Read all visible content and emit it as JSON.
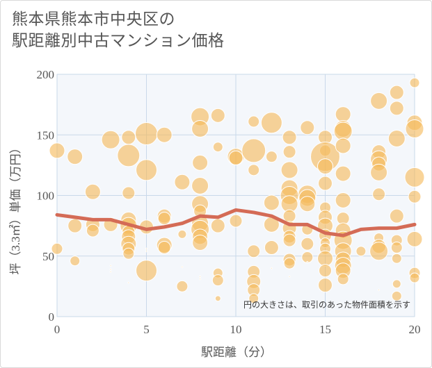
{
  "title_line1": "熊本県熊本市中央区の",
  "title_line2": "駅距離別中古マンション価格",
  "chart_data": {
    "type": "scatter",
    "xlabel": "駅距離（分）",
    "ylabel": "坪（3.3㎡）単価（万円）",
    "xlim": [
      0,
      20
    ],
    "ylim": [
      0,
      200
    ],
    "x_ticks": [
      "0",
      "5",
      "10",
      "15",
      "20"
    ],
    "y_ticks": [
      "0",
      "50",
      "100",
      "150",
      "200"
    ],
    "grid": true,
    "annotation": "円の大きさは、取引のあった物件面積を示す",
    "bubble_color": "#f5b95b",
    "line_color": "#d46b56",
    "bubbles": [
      {
        "x": 0,
        "y": 137,
        "r": 11
      },
      {
        "x": 0,
        "y": 56,
        "r": 8
      },
      {
        "x": 1,
        "y": 132,
        "r": 11
      },
      {
        "x": 1,
        "y": 75,
        "r": 10
      },
      {
        "x": 1,
        "y": 46,
        "r": 7
      },
      {
        "x": 2,
        "y": 103,
        "r": 11
      },
      {
        "x": 2,
        "y": 76,
        "r": 10
      },
      {
        "x": 2,
        "y": 71,
        "r": 9
      },
      {
        "x": 3,
        "y": 146,
        "r": 13
      },
      {
        "x": 3,
        "y": 76,
        "r": 10
      },
      {
        "x": 3,
        "y": 42,
        "r": 1
      },
      {
        "x": 3,
        "y": 39,
        "r": 1
      },
      {
        "x": 3,
        "y": 37,
        "r": 1
      },
      {
        "x": 4,
        "y": 148,
        "r": 10
      },
      {
        "x": 4,
        "y": 133,
        "r": 16
      },
      {
        "x": 4,
        "y": 102,
        "r": 9
      },
      {
        "x": 4,
        "y": 80,
        "r": 11
      },
      {
        "x": 4,
        "y": 75,
        "r": 12
      },
      {
        "x": 4,
        "y": 70,
        "r": 9
      },
      {
        "x": 4,
        "y": 66,
        "r": 10
      },
      {
        "x": 4,
        "y": 60,
        "r": 11
      },
      {
        "x": 4,
        "y": 56,
        "r": 9
      },
      {
        "x": 4,
        "y": 52,
        "r": 8
      },
      {
        "x": 4,
        "y": 28,
        "r": 1
      },
      {
        "x": 5,
        "y": 151,
        "r": 16
      },
      {
        "x": 5,
        "y": 121,
        "r": 15
      },
      {
        "x": 5,
        "y": 74,
        "r": 10
      },
      {
        "x": 5,
        "y": 56,
        "r": 1
      },
      {
        "x": 5,
        "y": 54,
        "r": 1
      },
      {
        "x": 5,
        "y": 38,
        "r": 15
      },
      {
        "x": 6,
        "y": 150,
        "r": 11
      },
      {
        "x": 6,
        "y": 83,
        "r": 10
      },
      {
        "x": 6,
        "y": 81,
        "r": 9
      },
      {
        "x": 6,
        "y": 59,
        "r": 11
      },
      {
        "x": 6,
        "y": 57,
        "r": 9
      },
      {
        "x": 7,
        "y": 111,
        "r": 11
      },
      {
        "x": 7,
        "y": 68,
        "r": 6
      },
      {
        "x": 7,
        "y": 41,
        "r": 1
      },
      {
        "x": 7,
        "y": 25,
        "r": 8
      },
      {
        "x": 8,
        "y": 165,
        "r": 13
      },
      {
        "x": 8,
        "y": 155,
        "r": 12
      },
      {
        "x": 8,
        "y": 127,
        "r": 11
      },
      {
        "x": 8,
        "y": 108,
        "r": 12
      },
      {
        "x": 8,
        "y": 93,
        "r": 12
      },
      {
        "x": 8,
        "y": 87,
        "r": 9
      },
      {
        "x": 8,
        "y": 77,
        "r": 12
      },
      {
        "x": 8,
        "y": 72,
        "r": 13
      },
      {
        "x": 8,
        "y": 66,
        "r": 11
      },
      {
        "x": 8,
        "y": 61,
        "r": 11
      },
      {
        "x": 8,
        "y": 33,
        "r": 1
      },
      {
        "x": 8,
        "y": 31,
        "r": 1
      },
      {
        "x": 9,
        "y": 166,
        "r": 10
      },
      {
        "x": 9,
        "y": 140,
        "r": 7
      },
      {
        "x": 9,
        "y": 75,
        "r": 10
      },
      {
        "x": 9,
        "y": 36,
        "r": 7
      },
      {
        "x": 9,
        "y": 30,
        "r": 8
      },
      {
        "x": 9,
        "y": 15,
        "r": 4
      },
      {
        "x": 10,
        "y": 132,
        "r": 12
      },
      {
        "x": 10,
        "y": 131,
        "r": 10
      },
      {
        "x": 10,
        "y": 79,
        "r": 9
      },
      {
        "x": 11,
        "y": 161,
        "r": 8
      },
      {
        "x": 11,
        "y": 137,
        "r": 17
      },
      {
        "x": 11,
        "y": 121,
        "r": 8
      },
      {
        "x": 11,
        "y": 54,
        "r": 9
      },
      {
        "x": 11,
        "y": 37,
        "r": 9
      },
      {
        "x": 11,
        "y": 29,
        "r": 10
      },
      {
        "x": 11,
        "y": 22,
        "r": 9
      },
      {
        "x": 11,
        "y": 15,
        "r": 7
      },
      {
        "x": 12,
        "y": 160,
        "r": 15
      },
      {
        "x": 12,
        "y": 132,
        "r": 8
      },
      {
        "x": 12,
        "y": 94,
        "r": 11
      },
      {
        "x": 12,
        "y": 76,
        "r": 11
      },
      {
        "x": 12,
        "y": 57,
        "r": 10
      },
      {
        "x": 12,
        "y": 40,
        "r": 1
      },
      {
        "x": 13,
        "y": 148,
        "r": 10
      },
      {
        "x": 13,
        "y": 136,
        "r": 9
      },
      {
        "x": 13,
        "y": 121,
        "r": 12
      },
      {
        "x": 13,
        "y": 106,
        "r": 12
      },
      {
        "x": 13,
        "y": 100,
        "r": 13
      },
      {
        "x": 13,
        "y": 93,
        "r": 12
      },
      {
        "x": 13,
        "y": 83,
        "r": 9
      },
      {
        "x": 13,
        "y": 73,
        "r": 10
      },
      {
        "x": 13,
        "y": 66,
        "r": 9
      },
      {
        "x": 13,
        "y": 63,
        "r": 9
      },
      {
        "x": 13,
        "y": 47,
        "r": 9
      },
      {
        "x": 13,
        "y": 44,
        "r": 8
      },
      {
        "x": 13,
        "y": 33,
        "r": 1
      },
      {
        "x": 14,
        "y": 156,
        "r": 10
      },
      {
        "x": 14,
        "y": 101,
        "r": 13
      },
      {
        "x": 14,
        "y": 98,
        "r": 12
      },
      {
        "x": 14,
        "y": 93,
        "r": 11
      },
      {
        "x": 14,
        "y": 72,
        "r": 8
      },
      {
        "x": 14,
        "y": 60,
        "r": 9
      },
      {
        "x": 14,
        "y": 49,
        "r": 8
      },
      {
        "x": 14,
        "y": 45,
        "r": 1
      },
      {
        "x": 15,
        "y": 148,
        "r": 10
      },
      {
        "x": 15,
        "y": 137,
        "r": 8
      },
      {
        "x": 15,
        "y": 132,
        "r": 21
      },
      {
        "x": 15,
        "y": 124,
        "r": 11
      },
      {
        "x": 15,
        "y": 110,
        "r": 10
      },
      {
        "x": 15,
        "y": 90,
        "r": 8
      },
      {
        "x": 15,
        "y": 82,
        "r": 10
      },
      {
        "x": 15,
        "y": 75,
        "r": 11
      },
      {
        "x": 15,
        "y": 67,
        "r": 9
      },
      {
        "x": 15,
        "y": 61,
        "r": 7
      },
      {
        "x": 15,
        "y": 56,
        "r": 8
      },
      {
        "x": 15,
        "y": 48,
        "r": 11
      },
      {
        "x": 15,
        "y": 38,
        "r": 9
      },
      {
        "x": 15,
        "y": 26,
        "r": 10
      },
      {
        "x": 16,
        "y": 167,
        "r": 11
      },
      {
        "x": 16,
        "y": 155,
        "r": 12
      },
      {
        "x": 16,
        "y": 153,
        "r": 13
      },
      {
        "x": 16,
        "y": 141,
        "r": 11
      },
      {
        "x": 16,
        "y": 118,
        "r": 11
      },
      {
        "x": 16,
        "y": 96,
        "r": 11
      },
      {
        "x": 16,
        "y": 81,
        "r": 9
      },
      {
        "x": 16,
        "y": 71,
        "r": 11
      },
      {
        "x": 16,
        "y": 63,
        "r": 13
      },
      {
        "x": 16,
        "y": 54,
        "r": 12
      },
      {
        "x": 16,
        "y": 47,
        "r": 11
      },
      {
        "x": 16,
        "y": 42,
        "r": 12
      },
      {
        "x": 16,
        "y": 38,
        "r": 11
      },
      {
        "x": 16,
        "y": 31,
        "r": 8
      },
      {
        "x": 17,
        "y": 54,
        "r": 7
      },
      {
        "x": 18,
        "y": 178,
        "r": 12
      },
      {
        "x": 18,
        "y": 136,
        "r": 10
      },
      {
        "x": 18,
        "y": 130,
        "r": 12
      },
      {
        "x": 18,
        "y": 126,
        "r": 10
      },
      {
        "x": 18,
        "y": 119,
        "r": 12
      },
      {
        "x": 18,
        "y": 101,
        "r": 9
      },
      {
        "x": 18,
        "y": 65,
        "r": 7
      },
      {
        "x": 18,
        "y": 58,
        "r": 10
      },
      {
        "x": 18,
        "y": 54,
        "r": 13
      },
      {
        "x": 18,
        "y": 22,
        "r": 1
      },
      {
        "x": 19,
        "y": 185,
        "r": 10
      },
      {
        "x": 19,
        "y": 172,
        "r": 10
      },
      {
        "x": 19,
        "y": 147,
        "r": 12
      },
      {
        "x": 19,
        "y": 83,
        "r": 10
      },
      {
        "x": 19,
        "y": 63,
        "r": 8
      },
      {
        "x": 19,
        "y": 57,
        "r": 8
      },
      {
        "x": 19,
        "y": 48,
        "r": 7
      },
      {
        "x": 19,
        "y": 27,
        "r": 6
      },
      {
        "x": 19,
        "y": 17,
        "r": 7
      },
      {
        "x": 20,
        "y": 193,
        "r": 7
      },
      {
        "x": 20,
        "y": 160,
        "r": 11
      },
      {
        "x": 20,
        "y": 155,
        "r": 13
      },
      {
        "x": 20,
        "y": 115,
        "r": 14
      },
      {
        "x": 20,
        "y": 99,
        "r": 9
      },
      {
        "x": 20,
        "y": 64,
        "r": 11
      },
      {
        "x": 20,
        "y": 36,
        "r": 8
      },
      {
        "x": 20,
        "y": 32,
        "r": 7
      }
    ],
    "series": [
      {
        "x": [
          0,
          1,
          2,
          3,
          4,
          5,
          6,
          7,
          8,
          9,
          10,
          11,
          12,
          13,
          14,
          15,
          16,
          17,
          18,
          19,
          20
        ],
        "values": [
          84,
          82,
          80,
          80,
          76,
          72,
          74,
          77,
          83,
          82,
          88,
          86,
          83,
          76,
          76,
          69,
          67,
          72,
          73,
          73,
          76
        ]
      }
    ]
  }
}
